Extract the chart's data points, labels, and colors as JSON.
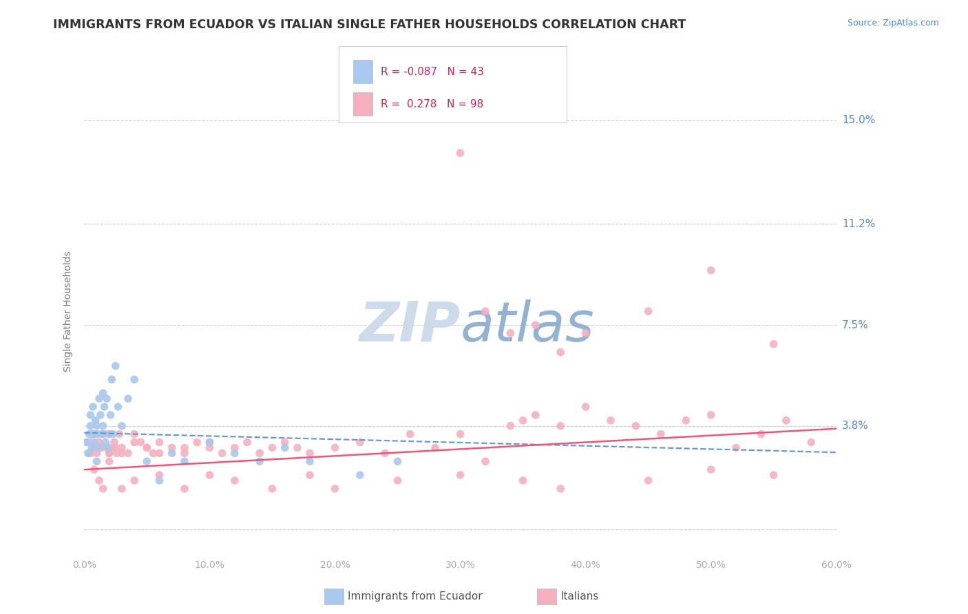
{
  "title": "IMMIGRANTS FROM ECUADOR VS ITALIAN SINGLE FATHER HOUSEHOLDS CORRELATION CHART",
  "source_text": "Source: ZipAtlas.com",
  "ylabel": "Single Father Households",
  "xlim": [
    0.0,
    60.0
  ],
  "ylim": [
    -1.0,
    17.0
  ],
  "ytick_vals": [
    0.0,
    3.8,
    7.5,
    11.2,
    15.0
  ],
  "ytick_labels": [
    "",
    "3.8%",
    "7.5%",
    "11.2%",
    "15.0%"
  ],
  "xtick_vals": [
    0.0,
    10.0,
    20.0,
    30.0,
    40.0,
    50.0,
    60.0
  ],
  "xtick_labels": [
    "0.0%",
    "10.0%",
    "20.0%",
    "30.0%",
    "40.0%",
    "50.0%",
    "60.0%"
  ],
  "title_color": "#333333",
  "title_fontsize": 12.5,
  "axis_label_color": "#777777",
  "tick_color": "#aaaaaa",
  "grid_color": "#cccccc",
  "watermark_text": "ZIPatlas",
  "watermark_color": "#dde8f5",
  "legend_r1": "R = -0.087",
  "legend_n1": "N = 43",
  "legend_r2": "R =  0.278",
  "legend_n2": "N = 98",
  "scatter1_color": "#a8c8ee",
  "scatter2_color": "#f5b0c0",
  "line1_color": "#6699cc",
  "line2_color": "#ee5577",
  "source_color": "#5588cc",
  "ytick_color": "#5588cc",
  "background_color": "#ffffff",
  "figsize": [
    14.06,
    8.92
  ],
  "dpi": 100,
  "scatter1_x": [
    0.2,
    0.3,
    0.4,
    0.5,
    0.5,
    0.6,
    0.7,
    0.7,
    0.8,
    0.9,
    1.0,
    1.0,
    1.1,
    1.2,
    1.2,
    1.3,
    1.4,
    1.5,
    1.5,
    1.6,
    1.7,
    1.8,
    1.9,
    2.0,
    2.1,
    2.2,
    2.3,
    2.5,
    2.7,
    3.0,
    3.5,
    4.0,
    5.0,
    6.0,
    7.0,
    8.0,
    10.0,
    12.0,
    14.0,
    16.0,
    18.0,
    22.0,
    25.0
  ],
  "scatter1_y": [
    3.2,
    2.8,
    3.5,
    3.8,
    4.2,
    3.0,
    3.5,
    4.5,
    3.2,
    4.0,
    3.8,
    2.5,
    3.5,
    4.8,
    3.0,
    4.2,
    3.5,
    5.0,
    3.8,
    4.5,
    3.2,
    4.8,
    3.0,
    3.5,
    4.2,
    5.5,
    3.5,
    6.0,
    4.5,
    3.8,
    4.8,
    5.5,
    2.5,
    1.8,
    2.8,
    2.5,
    3.2,
    2.8,
    2.5,
    3.0,
    2.5,
    2.0,
    2.5
  ],
  "scatter2_x": [
    0.2,
    0.4,
    0.6,
    0.8,
    1.0,
    1.0,
    1.2,
    1.4,
    1.6,
    1.8,
    2.0,
    2.0,
    2.2,
    2.4,
    2.6,
    2.8,
    3.0,
    3.5,
    4.0,
    4.5,
    5.0,
    5.5,
    6.0,
    7.0,
    8.0,
    9.0,
    10.0,
    11.0,
    12.0,
    13.0,
    14.0,
    15.0,
    16.0,
    17.0,
    18.0,
    20.0,
    22.0,
    24.0,
    26.0,
    28.0,
    30.0,
    32.0,
    34.0,
    35.0,
    36.0,
    38.0,
    40.0,
    42.0,
    44.0,
    46.0,
    48.0,
    50.0,
    52.0,
    54.0,
    56.0,
    58.0,
    30.0,
    32.0,
    34.0,
    36.0,
    38.0,
    40.0,
    45.0,
    50.0,
    55.0,
    55.0,
    50.0,
    45.0,
    38.0,
    35.0,
    30.0,
    25.0,
    20.0,
    18.0,
    15.0,
    12.0,
    10.0,
    8.0,
    6.0,
    4.0,
    3.0,
    2.0,
    1.5,
    1.2,
    0.8,
    0.5,
    0.5,
    0.8,
    1.0,
    1.5,
    2.0,
    2.5,
    3.0,
    4.0,
    5.0,
    6.0,
    8.0,
    10.0
  ],
  "scatter2_y": [
    3.2,
    2.8,
    3.5,
    3.0,
    2.8,
    3.5,
    3.2,
    3.0,
    3.5,
    3.0,
    2.8,
    3.5,
    3.0,
    3.2,
    2.8,
    3.5,
    3.0,
    2.8,
    3.5,
    3.2,
    3.0,
    2.8,
    3.2,
    3.0,
    2.8,
    3.2,
    3.0,
    2.8,
    3.0,
    3.2,
    2.8,
    3.0,
    3.2,
    3.0,
    2.8,
    3.0,
    3.2,
    2.8,
    3.5,
    3.0,
    3.5,
    2.5,
    3.8,
    4.0,
    4.2,
    3.8,
    4.5,
    4.0,
    3.8,
    3.5,
    4.0,
    4.2,
    3.0,
    3.5,
    4.0,
    3.2,
    13.8,
    8.0,
    7.2,
    7.5,
    6.5,
    7.2,
    8.0,
    9.5,
    6.8,
    2.0,
    2.2,
    1.8,
    1.5,
    1.8,
    2.0,
    1.8,
    1.5,
    2.0,
    1.5,
    1.8,
    2.0,
    1.5,
    2.0,
    1.8,
    1.5,
    2.5,
    1.5,
    1.8,
    2.2,
    2.8,
    3.2,
    3.5,
    3.0,
    3.5,
    2.8,
    3.0,
    2.8,
    3.2,
    3.0,
    2.8,
    3.0,
    3.2
  ]
}
